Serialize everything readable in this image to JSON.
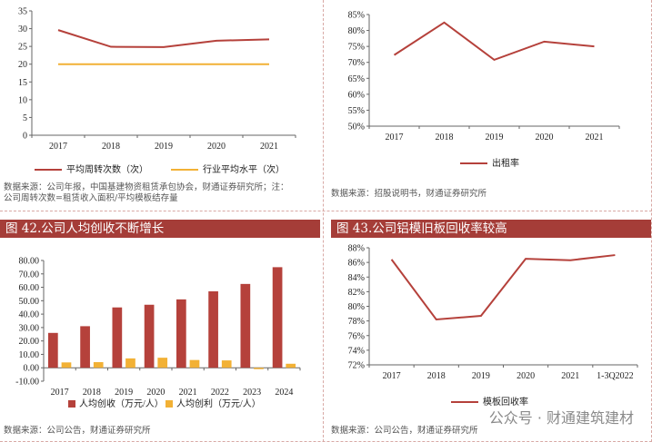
{
  "panels": {
    "tl": {
      "chart_data": {
        "type": "line",
        "categories": [
          "2017",
          "2018",
          "2019",
          "2020",
          "2021"
        ],
        "series": [
          {
            "name": "平均周转次数（次）",
            "values": [
              29.6,
              24.9,
              24.8,
              26.6,
              27.0
            ],
            "color": "#b5413b"
          },
          {
            "name": "行业平均水平（次）",
            "values": [
              20,
              20,
              20,
              20,
              20
            ],
            "color": "#f2b135"
          }
        ],
        "ylim": [
          0,
          35
        ],
        "yticks": [
          0,
          5,
          10,
          15,
          20,
          25,
          30,
          35
        ],
        "legend": "bottom"
      },
      "source": "数据来源：公司年报，中国基建物资租赁承包协会，财通证券研究所；注：\n公司周转次数=租赁收入面积/平均模板结存量"
    },
    "tr": {
      "chart_data": {
        "type": "line",
        "categories": [
          "2017",
          "2018",
          "2019",
          "2020",
          "2021"
        ],
        "series": [
          {
            "name": "出租率",
            "values": [
              72.3,
              82.5,
              70.8,
              76.5,
              75.0
            ],
            "color": "#b5413b"
          }
        ],
        "ylim": [
          50,
          85
        ],
        "yticks": [
          50,
          55,
          60,
          65,
          70,
          75,
          80,
          85
        ],
        "tick_suffix": "%",
        "legend": "bottom"
      },
      "source": "数据来源：招股说明书，财通证券研究所"
    },
    "bl": {
      "title": "图 42.公司人均创收不断增长",
      "chart_data": {
        "type": "bar",
        "categories": [
          "2017",
          "2018",
          "2019",
          "2020",
          "2021",
          "2022",
          "2023",
          "2024"
        ],
        "series": [
          {
            "name": "人均创收（万元/人）",
            "values": [
              26.0,
              31.0,
              45.0,
              47.0,
              51.0,
              57.0,
              62.5,
              75.0
            ],
            "color": "#b5413b"
          },
          {
            "name": "人均创利（万元/人）",
            "values": [
              4.0,
              4.2,
              7.0,
              7.5,
              5.8,
              5.5,
              -1.0,
              3.0
            ],
            "color": "#f2b135"
          }
        ],
        "ylim": [
          -10,
          80
        ],
        "yticks": [
          -10,
          0,
          10,
          20,
          30,
          40,
          50,
          60,
          70,
          80
        ],
        "legend": "bottom"
      },
      "source": "数据来源：公司公告，财通证券研究所"
    },
    "br": {
      "title": "图 43.公司铝模旧板回收率较高",
      "chart_data": {
        "type": "line",
        "categories": [
          "2017",
          "2018",
          "2019",
          "2020",
          "2021",
          "1-3Q2022"
        ],
        "series": [
          {
            "name": "模板回收率",
            "values": [
              86.4,
              78.2,
              78.7,
              86.5,
              86.3,
              87.0
            ],
            "color": "#b5413b"
          }
        ],
        "ylim": [
          72,
          88
        ],
        "yticks": [
          72,
          74,
          76,
          78,
          80,
          82,
          84,
          86,
          88
        ],
        "tick_suffix": "%",
        "legend": "bottom"
      },
      "source": "数据来源：公司公告，财通证券研究所"
    }
  },
  "watermark": "公众号 · 财通建筑建材"
}
